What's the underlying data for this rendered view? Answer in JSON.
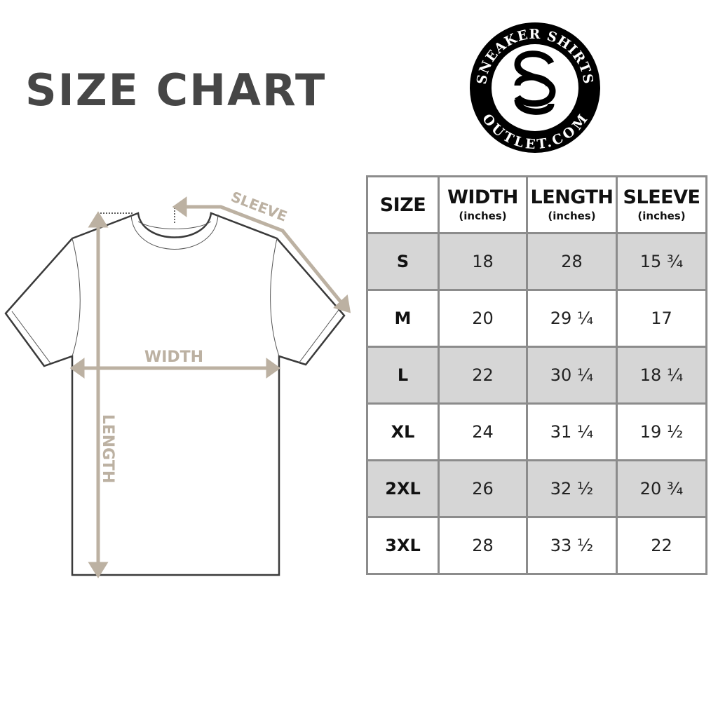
{
  "title": "SIZE CHART",
  "logo": {
    "top_text": "SNEAKER SHIRTS",
    "bottom_text": "OUTLET.COM",
    "monogram": "SS"
  },
  "diagram": {
    "width_label": "WIDTH",
    "length_label": "LENGTH",
    "sleeve_label": "SLEEVE"
  },
  "colors": {
    "accent": "#bcb1a2",
    "outline": "#3a3a3a",
    "row_alt": "#d6d6d6",
    "border": "#8c8c8c"
  },
  "table": {
    "headers": [
      {
        "label": "SIZE",
        "unit": ""
      },
      {
        "label": "WIDTH",
        "unit": "(inches)"
      },
      {
        "label": "LENGTH",
        "unit": "(inches)"
      },
      {
        "label": "SLEEVE",
        "unit": "(inches)"
      }
    ],
    "rows": [
      {
        "size": "S",
        "width": "18",
        "length": "28",
        "sleeve": "15 ¾"
      },
      {
        "size": "M",
        "width": "20",
        "length": "29 ¼",
        "sleeve": "17"
      },
      {
        "size": "L",
        "width": "22",
        "length": "30 ¼",
        "sleeve": "18 ¼"
      },
      {
        "size": "XL",
        "width": "24",
        "length": "31 ¼",
        "sleeve": "19 ½"
      },
      {
        "size": "2XL",
        "width": "26",
        "length": "32 ½",
        "sleeve": "20 ¾"
      },
      {
        "size": "3XL",
        "width": "28",
        "length": "33 ½",
        "sleeve": "22"
      }
    ]
  }
}
